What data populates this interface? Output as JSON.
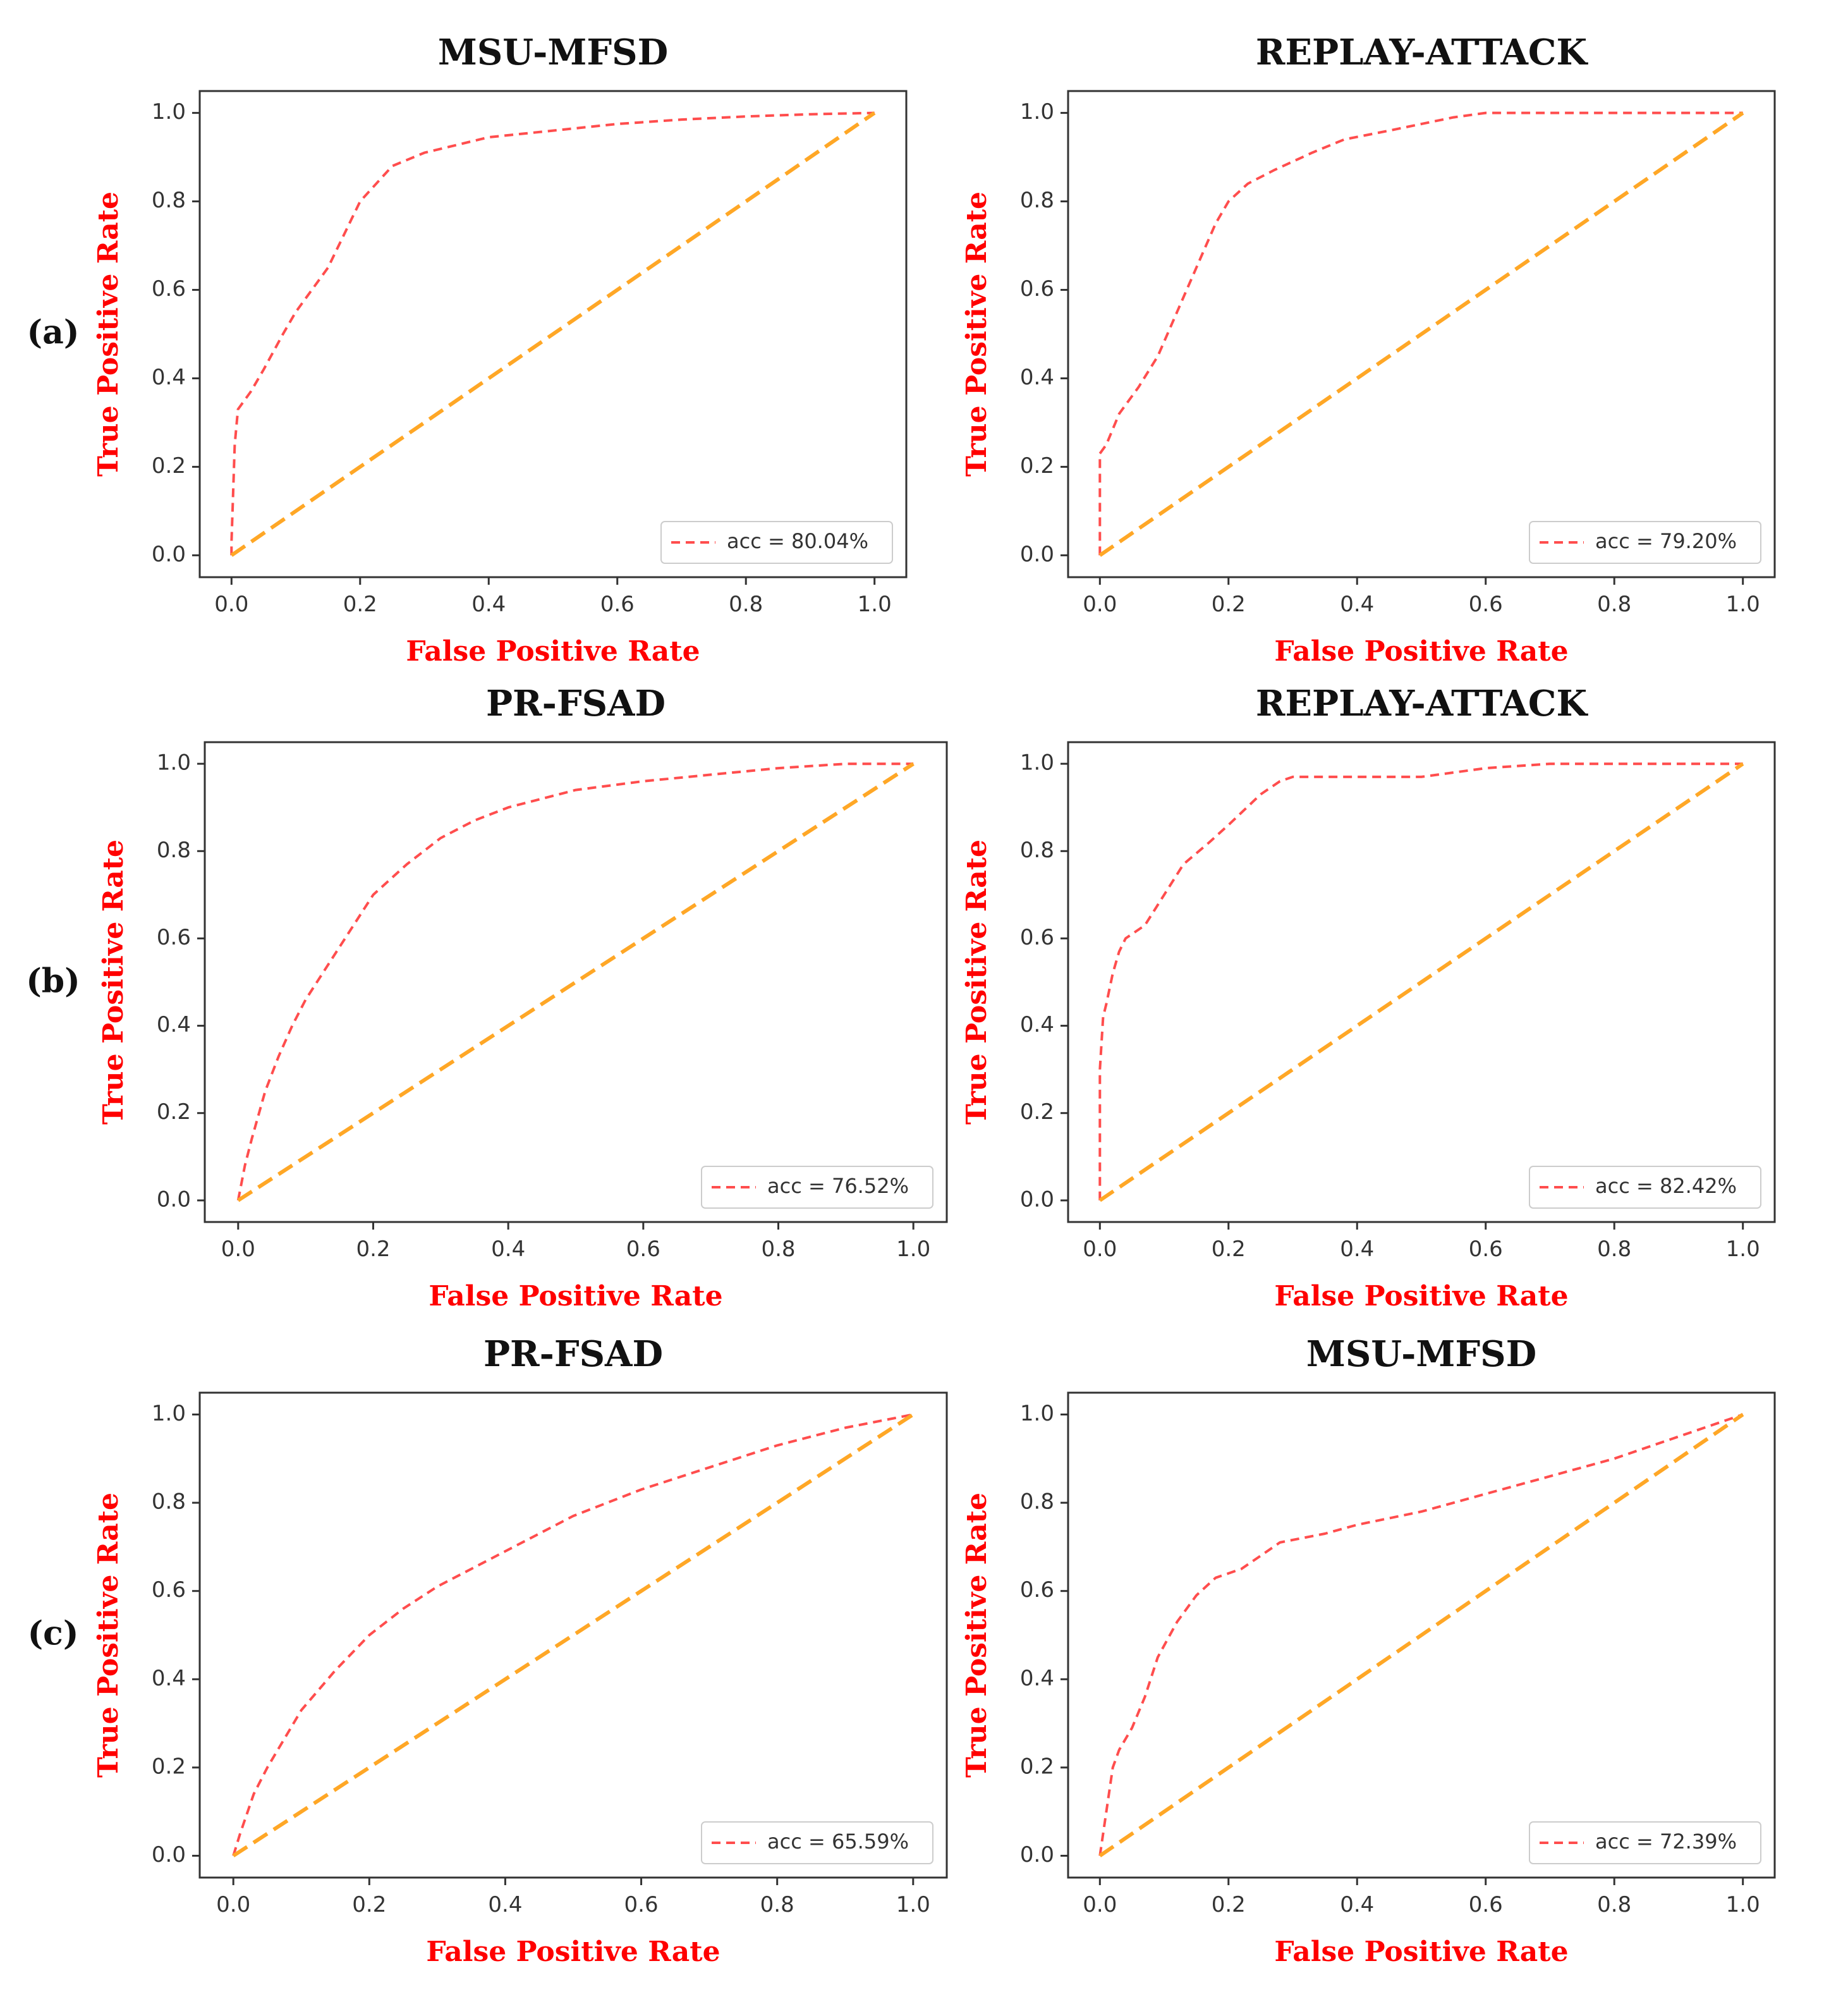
{
  "figure": {
    "row_labels": [
      "(a)",
      "(b)",
      "(c)"
    ]
  },
  "colors": {
    "roc": "#ff4d4d",
    "diagonal": "#ffa726",
    "axis_label": "#ff0000",
    "frame": "#333333"
  },
  "chart_data": [
    {
      "type": "line",
      "title": "MSU-MFSD",
      "xlabel": "False Positive Rate",
      "ylabel": "True Positive Rate",
      "xlim": [
        0,
        1
      ],
      "ylim": [
        0,
        1
      ],
      "xticks": [
        "0.0",
        "0.2",
        "0.4",
        "0.6",
        "0.8",
        "1.0"
      ],
      "yticks": [
        "0.0",
        "0.2",
        "0.4",
        "0.6",
        "0.8",
        "1.0"
      ],
      "legend_location": "lower-right",
      "legend_label": "acc = 80.04%",
      "series": [
        {
          "name": "acc = 80.04%",
          "style": "dashed-red",
          "x": [
            0,
            0,
            0.005,
            0.01,
            0.03,
            0.05,
            0.08,
            0.1,
            0.15,
            0.2,
            0.25,
            0.3,
            0.4,
            0.5,
            0.6,
            0.7,
            0.8,
            0.9,
            1.0
          ],
          "y": [
            0,
            0.03,
            0.25,
            0.33,
            0.37,
            0.42,
            0.5,
            0.55,
            0.65,
            0.8,
            0.88,
            0.91,
            0.945,
            0.96,
            0.975,
            0.985,
            0.992,
            0.997,
            1.0
          ]
        },
        {
          "name": "diagonal",
          "style": "dashed-orange",
          "x": [
            0,
            1
          ],
          "y": [
            0,
            1
          ]
        }
      ]
    },
    {
      "type": "line",
      "title": "REPLAY-ATTACK",
      "xlabel": "False Positive Rate",
      "ylabel": "True Positive Rate",
      "xlim": [
        0,
        1
      ],
      "ylim": [
        0,
        1
      ],
      "xticks": [
        "0.0",
        "0.2",
        "0.4",
        "0.6",
        "0.8",
        "1.0"
      ],
      "yticks": [
        "0.0",
        "0.2",
        "0.4",
        "0.6",
        "0.8",
        "1.0"
      ],
      "legend_location": "lower-right",
      "legend_label": "acc = 79.20%",
      "series": [
        {
          "name": "acc = 79.20%",
          "style": "dashed-red",
          "x": [
            0,
            0,
            0.01,
            0.03,
            0.06,
            0.09,
            0.12,
            0.15,
            0.18,
            0.2,
            0.23,
            0.27,
            0.33,
            0.38,
            0.45,
            0.5,
            0.55,
            0.6,
            0.7,
            0.8,
            0.9,
            1.0
          ],
          "y": [
            0,
            0.23,
            0.25,
            0.32,
            0.38,
            0.45,
            0.55,
            0.65,
            0.75,
            0.8,
            0.84,
            0.87,
            0.91,
            0.94,
            0.96,
            0.975,
            0.99,
            1.0,
            1.0,
            1.0,
            1.0,
            1.0
          ]
        },
        {
          "name": "diagonal",
          "style": "dashed-orange",
          "x": [
            0,
            1
          ],
          "y": [
            0,
            1
          ]
        }
      ]
    },
    {
      "type": "line",
      "title": "PR-FSAD",
      "xlabel": "False Positive Rate",
      "ylabel": "True Positive Rate",
      "xlim": [
        0,
        1
      ],
      "ylim": [
        0,
        1
      ],
      "xticks": [
        "0.0",
        "0.2",
        "0.4",
        "0.6",
        "0.8",
        "1.0"
      ],
      "yticks": [
        "0.0",
        "0.2",
        "0.4",
        "0.6",
        "0.8",
        "1.0"
      ],
      "legend_location": "lower-right",
      "legend_label": "acc = 76.52%",
      "series": [
        {
          "name": "acc = 76.52%",
          "style": "dashed-red",
          "x": [
            0,
            0.01,
            0.02,
            0.04,
            0.06,
            0.08,
            0.1,
            0.15,
            0.2,
            0.25,
            0.3,
            0.35,
            0.4,
            0.5,
            0.6,
            0.7,
            0.8,
            0.9,
            1.0
          ],
          "y": [
            0,
            0.08,
            0.14,
            0.25,
            0.33,
            0.4,
            0.46,
            0.58,
            0.7,
            0.77,
            0.83,
            0.87,
            0.9,
            0.94,
            0.96,
            0.975,
            0.99,
            1.0,
            1.0
          ]
        },
        {
          "name": "diagonal",
          "style": "dashed-orange",
          "x": [
            0,
            1
          ],
          "y": [
            0,
            1
          ]
        }
      ]
    },
    {
      "type": "line",
      "title": "REPLAY-ATTACK",
      "xlabel": "False Positive Rate",
      "ylabel": "True Positive Rate",
      "xlim": [
        0,
        1
      ],
      "ylim": [
        0,
        1
      ],
      "xticks": [
        "0.0",
        "0.2",
        "0.4",
        "0.6",
        "0.8",
        "1.0"
      ],
      "yticks": [
        "0.0",
        "0.2",
        "0.4",
        "0.6",
        "0.8",
        "1.0"
      ],
      "legend_location": "lower-right",
      "legend_label": "acc = 82.42%",
      "series": [
        {
          "name": "acc = 82.42%",
          "style": "dashed-red",
          "x": [
            0,
            0,
            0.005,
            0.01,
            0.02,
            0.03,
            0.04,
            0.07,
            0.1,
            0.13,
            0.17,
            0.2,
            0.25,
            0.28,
            0.3,
            0.4,
            0.5,
            0.55,
            0.6,
            0.7,
            0.8,
            0.9,
            1.0
          ],
          "y": [
            0,
            0.3,
            0.42,
            0.45,
            0.52,
            0.57,
            0.6,
            0.63,
            0.7,
            0.77,
            0.82,
            0.86,
            0.93,
            0.96,
            0.97,
            0.97,
            0.97,
            0.98,
            0.99,
            1.0,
            1.0,
            1.0,
            1.0
          ]
        },
        {
          "name": "diagonal",
          "style": "dashed-orange",
          "x": [
            0,
            1
          ],
          "y": [
            0,
            1
          ]
        }
      ]
    },
    {
      "type": "line",
      "title": "PR-FSAD",
      "xlabel": "False Positive Rate",
      "ylabel": "True Positive Rate",
      "xlim": [
        0,
        1
      ],
      "ylim": [
        0,
        1
      ],
      "xticks": [
        "0.0",
        "0.2",
        "0.4",
        "0.6",
        "0.8",
        "1.0"
      ],
      "yticks": [
        "0.0",
        "0.2",
        "0.4",
        "0.6",
        "0.8",
        "1.0"
      ],
      "legend_location": "lower-right",
      "legend_label": "acc = 65.59%",
      "series": [
        {
          "name": "acc = 65.59%",
          "style": "dashed-red",
          "x": [
            0,
            0.01,
            0.03,
            0.05,
            0.1,
            0.15,
            0.2,
            0.25,
            0.3,
            0.4,
            0.5,
            0.6,
            0.7,
            0.8,
            0.9,
            1.0
          ],
          "y": [
            0,
            0.05,
            0.14,
            0.2,
            0.33,
            0.42,
            0.5,
            0.56,
            0.61,
            0.69,
            0.77,
            0.83,
            0.88,
            0.93,
            0.97,
            1.0
          ]
        },
        {
          "name": "diagonal",
          "style": "dashed-orange",
          "x": [
            0,
            1
          ],
          "y": [
            0,
            1
          ]
        }
      ]
    },
    {
      "type": "line",
      "title": "MSU-MFSD",
      "xlabel": "False Positive Rate",
      "ylabel": "True Positive Rate",
      "xlim": [
        0,
        1
      ],
      "ylim": [
        0,
        1
      ],
      "xticks": [
        "0.0",
        "0.2",
        "0.4",
        "0.6",
        "0.8",
        "1.0"
      ],
      "yticks": [
        "0.0",
        "0.2",
        "0.4",
        "0.6",
        "0.8",
        "1.0"
      ],
      "legend_location": "lower-right",
      "legend_label": "acc = 72.39%",
      "series": [
        {
          "name": "acc = 72.39%",
          "style": "dashed-red",
          "x": [
            0,
            0.01,
            0.02,
            0.03,
            0.05,
            0.07,
            0.09,
            0.12,
            0.15,
            0.18,
            0.22,
            0.25,
            0.28,
            0.35,
            0.4,
            0.5,
            0.6,
            0.7,
            0.8,
            0.9,
            1.0
          ],
          "y": [
            0,
            0.1,
            0.2,
            0.24,
            0.29,
            0.36,
            0.45,
            0.53,
            0.59,
            0.63,
            0.65,
            0.68,
            0.71,
            0.73,
            0.75,
            0.78,
            0.82,
            0.86,
            0.9,
            0.95,
            1.0
          ]
        },
        {
          "name": "diagonal",
          "style": "dashed-orange",
          "x": [
            0,
            1
          ],
          "y": [
            0,
            1
          ]
        }
      ]
    }
  ]
}
